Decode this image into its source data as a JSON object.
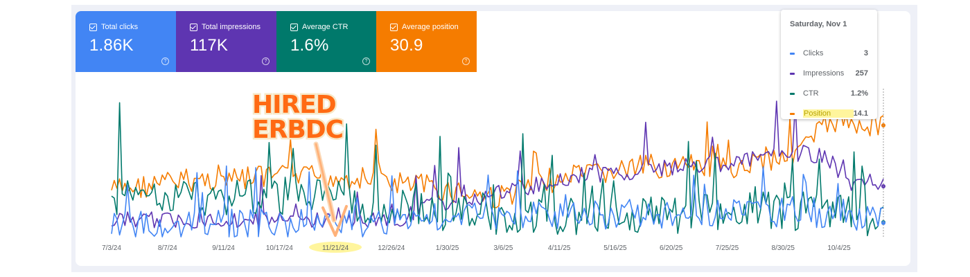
{
  "metrics": [
    {
      "label": "Total clicks",
      "value": "1.86K",
      "color": "#4285f4"
    },
    {
      "label": "Total impressions",
      "value": "117K",
      "color": "#5e35b1"
    },
    {
      "label": "Average CTR",
      "value": "1.6%",
      "color": "#00796b"
    },
    {
      "label": "Average position",
      "value": "30.9",
      "color": "#f57c00"
    }
  ],
  "tooltip": {
    "date": "Saturday, Nov 1",
    "rows": [
      {
        "name": "Clicks",
        "value": "3",
        "color": "#4285f4"
      },
      {
        "name": "Impressions",
        "value": "257",
        "color": "#5e35b1"
      },
      {
        "name": "CTR",
        "value": "1.2%",
        "color": "#00796b"
      },
      {
        "name": "Position",
        "value": "14.1",
        "color": "#f57c00"
      }
    ]
  },
  "annotation": {
    "line1": "HIRED",
    "line2": "ERBDC",
    "color": "#ff6a13"
  },
  "chart_data": {
    "type": "line",
    "xticks": [
      "7/3/24",
      "8/7/24",
      "9/11/24",
      "10/17/24",
      "11/21/24",
      "12/26/24",
      "1/30/25",
      "3/6/25",
      "4/11/25",
      "5/16/25",
      "6/20/25",
      "7/25/25",
      "8/30/25",
      "10/4/25"
    ],
    "highlighted_tick": "11/21/24",
    "series": [
      {
        "name": "Clicks",
        "color": "#4285f4"
      },
      {
        "name": "Impressions",
        "color": "#5e35b1"
      },
      {
        "name": "CTR",
        "color": "#00796b"
      },
      {
        "name": "Position",
        "color": "#f57c00"
      }
    ]
  }
}
